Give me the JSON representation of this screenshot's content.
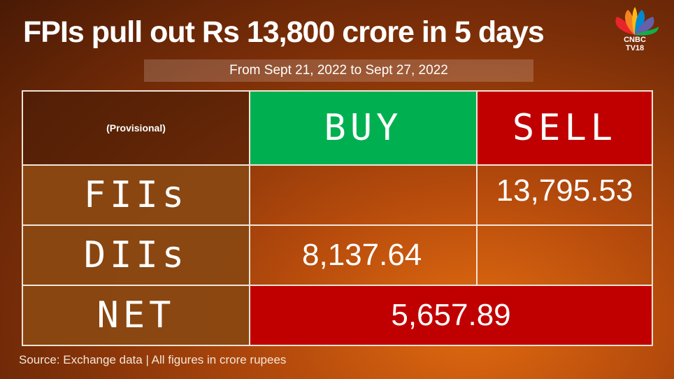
{
  "title": "FPIs pull out Rs 13,800 crore in 5 days",
  "subtitle": "From Sept 21, 2022 to Sept 27, 2022",
  "logo": {
    "brand_text": "CNBC TV18",
    "icon": "peacock-logo-icon"
  },
  "table": {
    "header": {
      "label": "(Provisional)",
      "buy": "BUY",
      "sell": "SELL"
    },
    "rows": [
      {
        "label": "FIIs",
        "buy": "",
        "sell": "13,795.53"
      },
      {
        "label": "DIIs",
        "buy": "8,137.64",
        "sell": ""
      }
    ],
    "net": {
      "label": "NET",
      "value": "5,657.89"
    }
  },
  "source": "Source: Exchange data | All figures in crore rupees",
  "colors": {
    "buy": "#00b050",
    "sell": "#c00000",
    "background": "#b44a0c"
  }
}
